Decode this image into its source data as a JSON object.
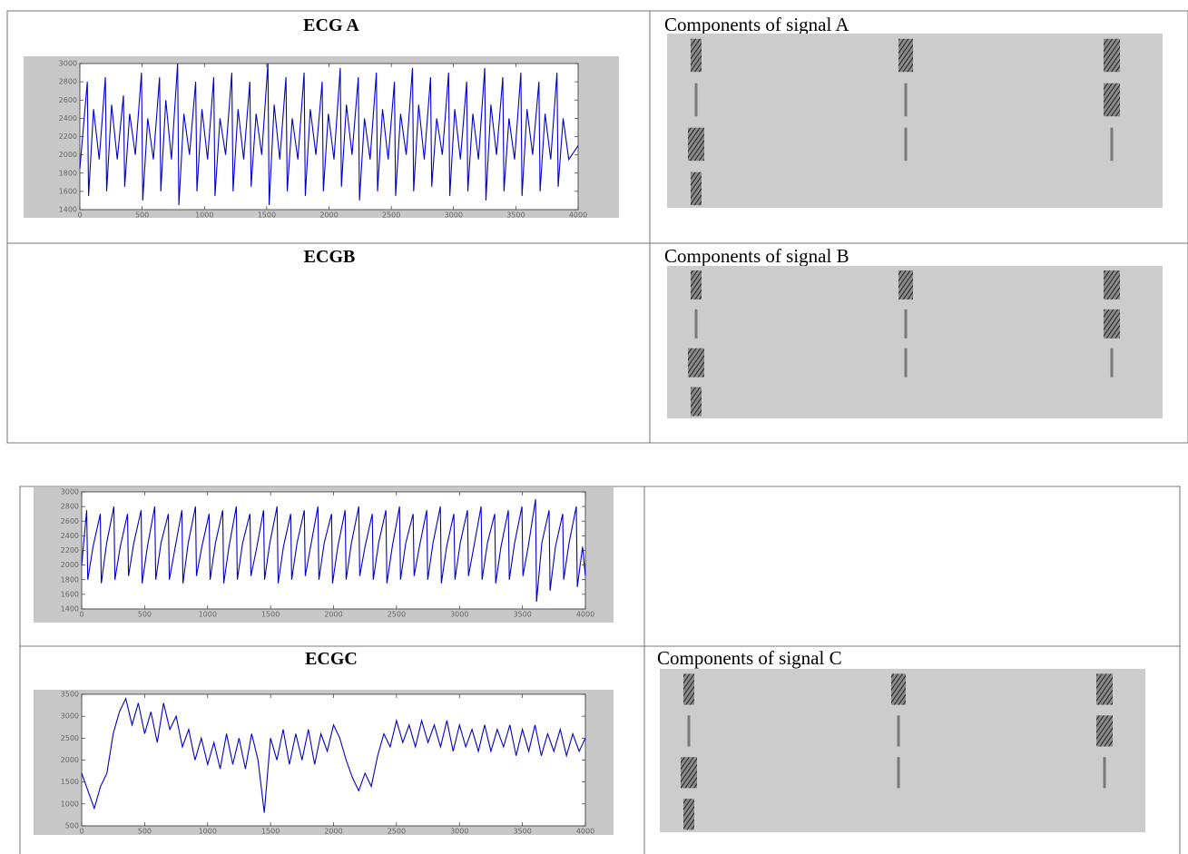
{
  "tables": [
    {
      "rows": [
        [
          "ECG A",
          "Components of signal A"
        ],
        [
          "ECGB",
          "Components of signal B"
        ]
      ]
    },
    {
      "rows": [
        [
          "ECGC",
          "Components of signal C"
        ]
      ]
    }
  ],
  "chart_data": [
    {
      "type": "line",
      "color": "#0000cc",
      "xlim": [
        0,
        4000
      ],
      "ylim": [
        1400,
        3000
      ],
      "xticks": [
        0,
        500,
        1000,
        1500,
        2000,
        2500,
        3000,
        3500,
        4000
      ],
      "yticks": [
        1400,
        1600,
        1800,
        2000,
        2200,
        2400,
        2600,
        2800,
        3000
      ],
      "x": [
        0,
        60,
        70,
        110,
        155,
        205,
        215,
        255,
        300,
        350,
        360,
        400,
        445,
        495,
        505,
        545,
        590,
        640,
        650,
        690,
        735,
        785,
        795,
        835,
        880,
        930,
        940,
        980,
        1025,
        1075,
        1085,
        1125,
        1170,
        1220,
        1230,
        1270,
        1315,
        1365,
        1375,
        1415,
        1460,
        1510,
        1520,
        1560,
        1605,
        1655,
        1665,
        1705,
        1750,
        1800,
        1810,
        1850,
        1895,
        1945,
        1955,
        1995,
        2040,
        2090,
        2100,
        2140,
        2185,
        2235,
        2245,
        2285,
        2330,
        2380,
        2390,
        2430,
        2475,
        2525,
        2535,
        2575,
        2620,
        2670,
        2680,
        2720,
        2765,
        2815,
        2825,
        2865,
        2910,
        2960,
        2970,
        3010,
        3055,
        3105,
        3115,
        3155,
        3200,
        3250,
        3260,
        3300,
        3345,
        3395,
        3405,
        3445,
        3490,
        3540,
        3550,
        3590,
        3635,
        3685,
        3695,
        3735,
        3780,
        3830,
        3840,
        3880,
        3925,
        4000
      ],
      "values": [
        1850,
        2800,
        1550,
        2500,
        1950,
        2850,
        1600,
        2550,
        1950,
        2650,
        1650,
        2450,
        2000,
        2900,
        1500,
        2400,
        1950,
        2850,
        1600,
        2600,
        1950,
        3000,
        1450,
        2450,
        2000,
        2800,
        1600,
        2500,
        1950,
        2850,
        1550,
        2400,
        2000,
        2900,
        1600,
        2500,
        1950,
        2800,
        1650,
        2450,
        2000,
        3000,
        1450,
        2550,
        1950,
        2850,
        1600,
        2400,
        1950,
        2900,
        1550,
        2500,
        2000,
        2800,
        1600,
        2450,
        1950,
        2950,
        1650,
        2550,
        2000,
        2850,
        1500,
        2400,
        1950,
        2900,
        1600,
        2500,
        1950,
        2800,
        1550,
        2450,
        2000,
        2950,
        1600,
        2550,
        1950,
        2850,
        1650,
        2400,
        2000,
        2900,
        1550,
        2500,
        1950,
        2800,
        1600,
        2450,
        1950,
        2950,
        1500,
        2550,
        2000,
        2850,
        1600,
        2400,
        1950,
        2900,
        1550,
        2500,
        2000,
        2800,
        1600,
        2450,
        1950,
        2900,
        1650,
        2400,
        1950,
        2100
      ]
    },
    {
      "type": "line",
      "color": "#0000cc",
      "xlim": [
        0,
        4000
      ],
      "ylim": [
        1400,
        3000
      ],
      "xticks": [
        0,
        500,
        1000,
        1500,
        2000,
        2500,
        3000,
        3500,
        4000
      ],
      "yticks": [
        1400,
        1600,
        1800,
        2000,
        2200,
        2400,
        2600,
        2800,
        3000
      ],
      "x": [
        0,
        40,
        48,
        90,
        148,
        156,
        198,
        256,
        264,
        306,
        364,
        372,
        414,
        472,
        480,
        522,
        580,
        588,
        630,
        688,
        696,
        738,
        796,
        804,
        846,
        904,
        912,
        954,
        1012,
        1020,
        1062,
        1120,
        1128,
        1170,
        1228,
        1236,
        1278,
        1336,
        1344,
        1386,
        1444,
        1452,
        1494,
        1552,
        1560,
        1602,
        1660,
        1668,
        1710,
        1768,
        1776,
        1818,
        1876,
        1884,
        1926,
        1984,
        1992,
        2034,
        2092,
        2100,
        2142,
        2200,
        2208,
        2250,
        2308,
        2316,
        2358,
        2416,
        2424,
        2466,
        2524,
        2532,
        2574,
        2632,
        2640,
        2682,
        2740,
        2748,
        2790,
        2848,
        2856,
        2898,
        2956,
        2964,
        3006,
        3064,
        3072,
        3114,
        3172,
        3180,
        3222,
        3280,
        3288,
        3330,
        3388,
        3396,
        3438,
        3496,
        3504,
        3546,
        3604,
        3612,
        3654,
        3712,
        3720,
        3762,
        3820,
        3828,
        3870,
        3928,
        3936,
        3978,
        4000
      ],
      "values": [
        2000,
        2750,
        1800,
        2250,
        2700,
        1750,
        2300,
        2800,
        1800,
        2250,
        2700,
        1850,
        2300,
        2750,
        1750,
        2250,
        2800,
        1800,
        2300,
        2700,
        1800,
        2200,
        2750,
        1750,
        2300,
        2800,
        1850,
        2250,
        2700,
        1800,
        2300,
        2750,
        1750,
        2250,
        2800,
        1800,
        2300,
        2700,
        1850,
        2200,
        2750,
        1800,
        2300,
        2800,
        1750,
        2250,
        2700,
        1800,
        2300,
        2750,
        1850,
        2250,
        2800,
        1800,
        2300,
        2700,
        1750,
        2250,
        2750,
        1800,
        2300,
        2800,
        1850,
        2250,
        2700,
        1800,
        2300,
        2750,
        1750,
        2250,
        2800,
        1800,
        2300,
        2700,
        1850,
        2250,
        2750,
        1800,
        2300,
        2800,
        1750,
        2250,
        2700,
        1800,
        2300,
        2750,
        1850,
        2250,
        2800,
        1800,
        2300,
        2700,
        1750,
        2250,
        2750,
        1800,
        2300,
        2800,
        1850,
        2250,
        2900,
        1500,
        2300,
        2750,
        1650,
        2250,
        2700,
        1800,
        2300,
        2800,
        1700,
        2250,
        1850
      ]
    },
    {
      "type": "line",
      "color": "#0000cc",
      "xlim": [
        0,
        4000
      ],
      "ylim": [
        500,
        3500
      ],
      "xticks": [
        0,
        500,
        1000,
        1500,
        2000,
        2500,
        3000,
        3500,
        4000
      ],
      "yticks": [
        500,
        1000,
        1500,
        2000,
        2500,
        3000,
        3500
      ],
      "x": [
        0,
        50,
        100,
        150,
        200,
        250,
        300,
        350,
        400,
        450,
        500,
        550,
        600,
        650,
        700,
        750,
        800,
        850,
        900,
        950,
        1000,
        1050,
        1100,
        1150,
        1200,
        1250,
        1300,
        1350,
        1400,
        1450,
        1500,
        1550,
        1600,
        1650,
        1700,
        1750,
        1800,
        1850,
        1900,
        1950,
        2000,
        2050,
        2100,
        2150,
        2200,
        2250,
        2300,
        2350,
        2400,
        2450,
        2500,
        2550,
        2600,
        2650,
        2700,
        2750,
        2800,
        2850,
        2900,
        2950,
        3000,
        3050,
        3100,
        3150,
        3200,
        3250,
        3300,
        3350,
        3400,
        3450,
        3500,
        3550,
        3600,
        3650,
        3700,
        3750,
        3800,
        3850,
        3900,
        3950,
        4000
      ],
      "values": [
        1700,
        1300,
        900,
        1400,
        1700,
        2600,
        3100,
        3400,
        2800,
        3300,
        2600,
        3100,
        2400,
        3300,
        2700,
        3000,
        2300,
        2700,
        2000,
        2500,
        1900,
        2400,
        1800,
        2600,
        1900,
        2500,
        1800,
        2600,
        2000,
        800,
        2500,
        2000,
        2700,
        1900,
        2600,
        2000,
        2700,
        1900,
        2600,
        2200,
        2800,
        2500,
        2000,
        1600,
        1300,
        1700,
        1400,
        2100,
        2600,
        2300,
        2900,
        2400,
        2800,
        2300,
        2900,
        2400,
        2800,
        2300,
        2900,
        2200,
        2800,
        2300,
        2700,
        2200,
        2800,
        2200,
        2700,
        2300,
        2800,
        2100,
        2700,
        2200,
        2800,
        2100,
        2600,
        2200,
        2700,
        2100,
        2600,
        2200,
        2500
      ]
    }
  ]
}
